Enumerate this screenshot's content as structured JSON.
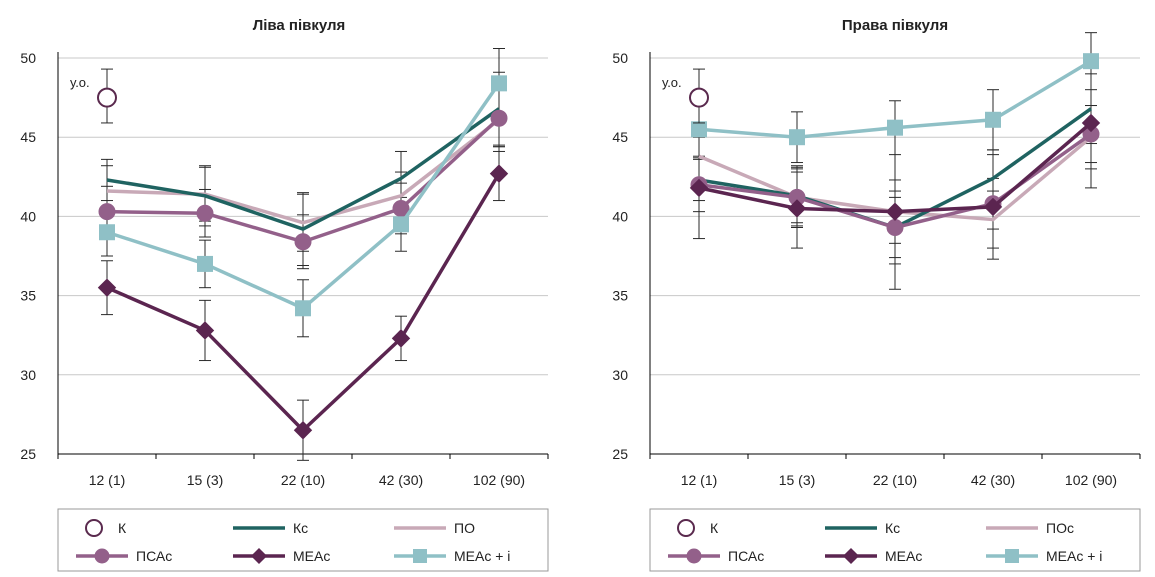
{
  "colors": {
    "K": "#5a2a4e",
    "Kc": "#1f6361",
    "PO": "#c8a9b7",
    "PSAc": "#93608a",
    "MEAc": "#5b2550",
    "MEAci": "#8fc0c6"
  },
  "chart_data": [
    {
      "type": "line",
      "title": "Ліва півкуля",
      "categories": [
        "12 (1)",
        "15 (3)",
        "22 (10)",
        "42 (30)",
        "102 (90)"
      ],
      "ylim": [
        25,
        50
      ],
      "yticks": [
        25,
        30,
        35,
        40,
        45,
        50
      ],
      "grid": true,
      "legend_position": "bottom",
      "annotation": "у.о.",
      "control_point": {
        "name": "К",
        "category": "12 (1)",
        "value": 47.5,
        "error_low": 45.9,
        "error_high": 49.3
      },
      "series": [
        {
          "name": "Кс",
          "key": "Kc",
          "marker": "none",
          "values": [
            42.3,
            41.3,
            39.2,
            42.4,
            46.8
          ],
          "err": [
            1.3,
            1.9,
            2.3,
            1.7,
            2.3
          ]
        },
        {
          "name": "ПО",
          "key": "PO",
          "marker": "none",
          "values": [
            41.6,
            41.4,
            39.6,
            41.3,
            46.1
          ],
          "err": [
            1.6,
            1.7,
            1.8,
            1.5,
            2.0
          ]
        },
        {
          "name": "ПСАс",
          "key": "PSAc",
          "marker": "circle",
          "values": [
            40.3,
            40.2,
            38.4,
            40.5,
            46.2
          ],
          "err": [
            1.6,
            1.5,
            1.7,
            1.6,
            1.8
          ]
        },
        {
          "name": "МЕАс",
          "key": "MEAc",
          "marker": "diamond",
          "values": [
            35.5,
            32.8,
            26.5,
            32.3,
            42.7
          ],
          "err": [
            1.7,
            1.9,
            1.9,
            1.4,
            1.7
          ]
        },
        {
          "name": "МЕАс + і",
          "key": "MEAci",
          "marker": "square",
          "values": [
            39.0,
            37.0,
            34.2,
            39.5,
            48.4
          ],
          "err": [
            1.5,
            1.5,
            1.8,
            1.7,
            2.2
          ]
        }
      ],
      "legend": [
        {
          "label": "К",
          "key": "K",
          "marker": "open-circle"
        },
        {
          "label": "Кс",
          "key": "Kc",
          "marker": "none"
        },
        {
          "label": "ПО",
          "key": "PO",
          "marker": "none"
        },
        {
          "label": "ПСАс",
          "key": "PSAc",
          "marker": "circle"
        },
        {
          "label": "МЕАс",
          "key": "MEAc",
          "marker": "diamond"
        },
        {
          "label": "МЕАс + і",
          "key": "MEAci",
          "marker": "square"
        }
      ]
    },
    {
      "type": "line",
      "title": "Права півкуля",
      "categories": [
        "12 (1)",
        "15 (3)",
        "22 (10)",
        "42 (30)",
        "102 (90)"
      ],
      "ylim": [
        25,
        50
      ],
      "yticks": [
        25,
        30,
        35,
        40,
        45,
        50
      ],
      "grid": true,
      "legend_position": "bottom",
      "annotation": "у.о.",
      "control_point": {
        "name": "К",
        "category": "12 (1)",
        "value": 47.5,
        "error_low": 45.9,
        "error_high": 49.3
      },
      "series": [
        {
          "name": "Кс",
          "key": "Kc",
          "marker": "none",
          "values": [
            42.3,
            41.3,
            39.3,
            42.4,
            46.8
          ],
          "err": [
            1.3,
            1.9,
            2.3,
            1.8,
            2.2
          ]
        },
        {
          "name": "ПОс",
          "key": "PO",
          "marker": "none",
          "values": [
            43.8,
            41.2,
            40.3,
            39.8,
            45.0
          ],
          "err": [
            1.6,
            1.9,
            2.0,
            1.8,
            2.0
          ]
        },
        {
          "name": "ПСАс",
          "key": "PSAc",
          "marker": "circle",
          "values": [
            42.0,
            41.2,
            39.3,
            40.8,
            45.2
          ],
          "err": [
            1.7,
            1.6,
            1.9,
            1.6,
            1.8
          ]
        },
        {
          "name": "МЕАс",
          "key": "MEAc",
          "marker": "diamond",
          "values": [
            41.8,
            40.5,
            40.3,
            40.6,
            45.9
          ],
          "err": [
            3.2,
            2.5,
            4.9,
            3.3,
            4.1
          ]
        },
        {
          "name": "МЕАс + і",
          "key": "MEAci",
          "marker": "square",
          "values": [
            45.5,
            45.0,
            45.6,
            46.1,
            49.8
          ],
          "err": [
            1.7,
            1.6,
            1.7,
            1.9,
            1.8
          ]
        }
      ],
      "legend": [
        {
          "label": "К",
          "key": "K",
          "marker": "open-circle"
        },
        {
          "label": "Кс",
          "key": "Kc",
          "marker": "none"
        },
        {
          "label": "ПОс",
          "key": "PO",
          "marker": "none"
        },
        {
          "label": "ПСАс",
          "key": "PSAc",
          "marker": "circle"
        },
        {
          "label": "МЕАс",
          "key": "MEAc",
          "marker": "diamond"
        },
        {
          "label": "МЕАс + і",
          "key": "MEAci",
          "marker": "square"
        }
      ]
    }
  ]
}
